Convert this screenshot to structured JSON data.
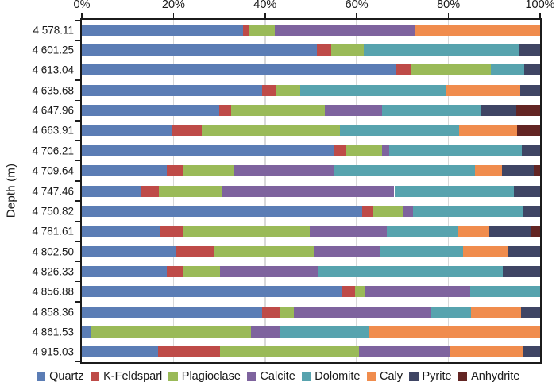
{
  "chart_data": {
    "type": "bar",
    "orientation": "horizontal",
    "stacked": true,
    "title": "",
    "xlabel": "",
    "ylabel": "Depth (m)",
    "xlim": [
      0,
      100
    ],
    "x_ticks": [
      "0%",
      "20%",
      "40%",
      "60%",
      "80%",
      "100%"
    ],
    "x_tick_values": [
      0,
      20,
      40,
      60,
      80,
      100
    ],
    "grid": {
      "vertical_lines_at": [
        20,
        40,
        60,
        80
      ],
      "color": "#D9D9D9"
    },
    "legend_position": "bottom",
    "axis_color": "#1B1B1B",
    "categories": [
      "4 578.11",
      "4 601.25",
      "4 613.04",
      "4 635.68",
      "4 647.96",
      "4 663.91",
      "4 706.21",
      "4 709.64",
      "4 747.46",
      "4 750.82",
      "4 781.61",
      "4 802.50",
      "4 826.33",
      "4 856.88",
      "4 858.36",
      "4 861.53",
      "4 915.03"
    ],
    "series": [
      {
        "name": "Quartz",
        "color": "#5B7DB5",
        "values": [
          35.2,
          51.3,
          68.4,
          39.3,
          30.0,
          19.6,
          54.9,
          18.5,
          12.8,
          61.2,
          16.9,
          20.6,
          18.5,
          56.8,
          39.3,
          2.1,
          16.7
        ]
      },
      {
        "name": "K-Feldsparl",
        "color": "#BE4B48",
        "values": [
          1.3,
          3.2,
          3.6,
          3.0,
          2.6,
          6.5,
          2.6,
          3.6,
          4.0,
          2.2,
          5.2,
          8.3,
          3.7,
          2.9,
          4.0,
          0,
          13.5
        ]
      },
      {
        "name": "Plagioclase",
        "color": "#9ABA58",
        "values": [
          5.6,
          7.0,
          17.3,
          5.3,
          20.5,
          30.3,
          8.0,
          11.1,
          13.8,
          6.6,
          27.6,
          21.7,
          8.0,
          2.2,
          3.0,
          34.8,
          30.3
        ]
      },
      {
        "name": "Calcite",
        "color": "#7E639E",
        "values": [
          30.5,
          0,
          0,
          0,
          12.4,
          0,
          1.5,
          21.7,
          37.6,
          2.2,
          16.8,
          14.6,
          21.2,
          22.9,
          29.9,
          6.2,
          19.7
        ]
      },
      {
        "name": "Dolomite",
        "color": "#57A3AE",
        "values": [
          0,
          34.0,
          7.2,
          32.0,
          21.6,
          25.9,
          29.1,
          30.9,
          26.1,
          24.2,
          15.7,
          18.0,
          40.4,
          15.2,
          8.8,
          19.7,
          0
        ]
      },
      {
        "name": "Caly",
        "color": "#F08C4D",
        "values": [
          27.4,
          0,
          0,
          16.0,
          0,
          12.6,
          0,
          5.9,
          0,
          0,
          6.7,
          9.8,
          0,
          0,
          10.9,
          37.2,
          16.1
        ]
      },
      {
        "name": "Pyrite",
        "color": "#3F4564",
        "values": [
          0,
          4.5,
          3.5,
          4.4,
          7.7,
          0,
          3.9,
          6.9,
          5.7,
          3.6,
          9.1,
          7.0,
          8.2,
          0,
          4.1,
          0,
          3.7
        ]
      },
      {
        "name": "Anhydrite",
        "color": "#632523",
        "values": [
          0,
          0,
          0,
          0,
          5.2,
          5.1,
          0,
          1.4,
          0,
          0,
          2.0,
          0,
          0,
          0,
          0,
          0,
          0
        ]
      }
    ]
  },
  "colors": {
    "background": "#FFFFFF",
    "axis": "#1B1B1B",
    "grid": "#D9D9D9",
    "text": "#1A1A1A"
  }
}
